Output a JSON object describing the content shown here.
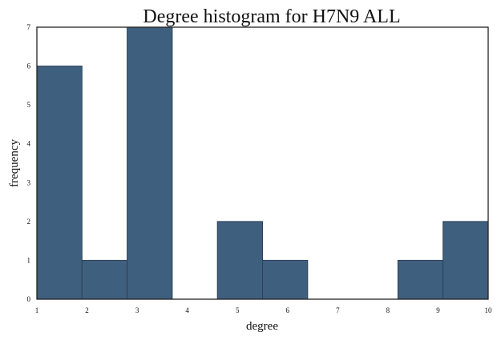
{
  "chart_data": {
    "type": "bar",
    "title": "Degree histogram for H7N9  ALL",
    "xlabel": "degree",
    "ylabel": "frequency",
    "bin_edges": [
      1.0,
      1.9,
      2.8,
      3.7,
      4.6,
      5.5,
      6.4,
      7.3,
      8.2,
      9.1,
      10.0
    ],
    "values": [
      6,
      1,
      7,
      0,
      2,
      1,
      0,
      0,
      1,
      2
    ],
    "xlim": [
      1,
      10
    ],
    "ylim": [
      0,
      7
    ],
    "xticks": [
      "1",
      "2",
      "3",
      "4",
      "5",
      "6",
      "7",
      "8",
      "9",
      "10"
    ],
    "yticks": [
      "0",
      "1",
      "2",
      "3",
      "4",
      "5",
      "6",
      "7"
    ],
    "grid": false,
    "bar_color": "#3f5f7f"
  }
}
